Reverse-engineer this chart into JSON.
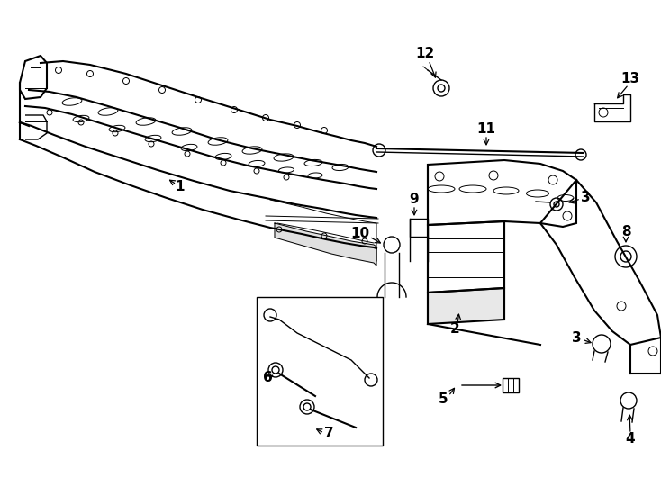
{
  "background_color": "#ffffff",
  "line_color": "#000000",
  "fig_width": 7.34,
  "fig_height": 5.4,
  "dpi": 100,
  "label_size": 11,
  "label_bold": true
}
